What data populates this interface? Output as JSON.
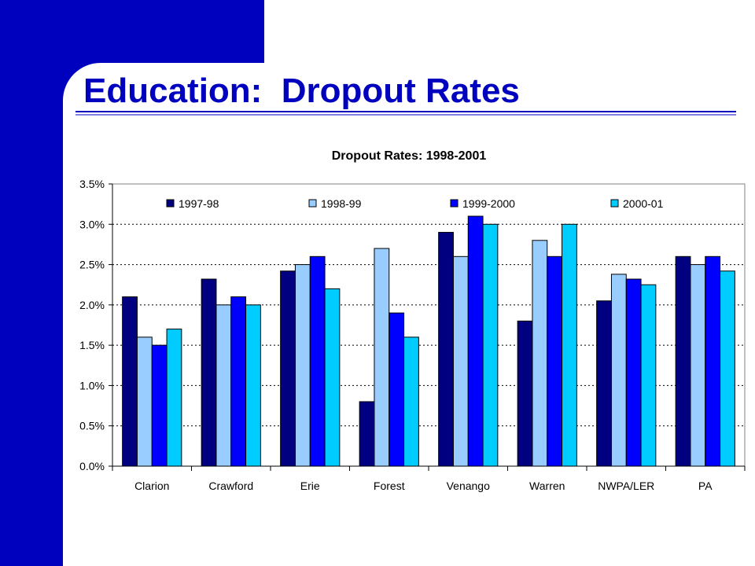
{
  "slide": {
    "title": "Education:  Dropout Rates",
    "accent_color": "#0000BF"
  },
  "chart_data": {
    "type": "bar",
    "title": "Dropout Rates: 1998-2001",
    "xlabel": "",
    "ylabel": "",
    "categories": [
      "Clarion",
      "Crawford",
      "Erie",
      "Forest",
      "Venango",
      "Warren",
      "NWPA/LER",
      "PA"
    ],
    "series": [
      {
        "name": "1997-98",
        "color": "#000080",
        "values": [
          2.1,
          2.32,
          2.42,
          0.8,
          2.9,
          1.8,
          2.05,
          2.6
        ]
      },
      {
        "name": "1998-99",
        "color": "#99CCFF",
        "values": [
          1.6,
          2.0,
          2.5,
          2.7,
          2.6,
          2.8,
          2.38,
          2.5
        ]
      },
      {
        "name": "1999-2000",
        "color": "#0000FF",
        "values": [
          1.5,
          2.1,
          2.6,
          1.9,
          3.1,
          2.6,
          2.32,
          2.6
        ]
      },
      {
        "name": "2000-01",
        "color": "#00CCFF",
        "values": [
          1.7,
          2.0,
          2.2,
          1.6,
          3.0,
          3.0,
          2.25,
          2.42
        ]
      }
    ],
    "ylim": [
      0,
      3.5
    ],
    "y_ticks": [
      "0.0%",
      "0.5%",
      "1.0%",
      "1.5%",
      "2.0%",
      "2.5%",
      "3.0%",
      "3.5%"
    ],
    "unit": "%",
    "grid": true,
    "legend_position": "top"
  }
}
